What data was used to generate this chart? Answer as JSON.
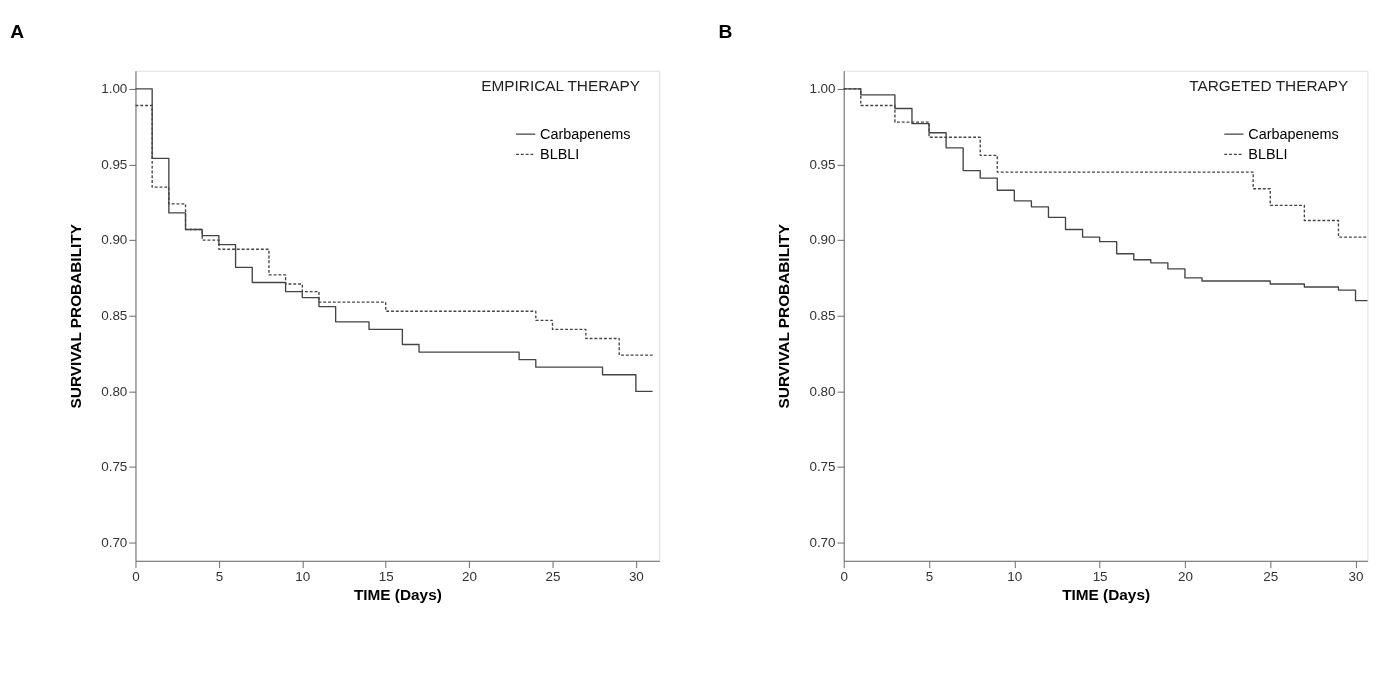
{
  "chart_data": [
    {
      "type": "step",
      "title": "A",
      "subtitle": "EMPIRICAL THERAPY",
      "xlabel": "TIME (Days)",
      "ylabel": "SURVIVAL PROBABILITY",
      "xlim": [
        0,
        31.4
      ],
      "ylim": [
        0.688,
        1.012
      ],
      "xticks": [
        0,
        5,
        10,
        15,
        20,
        25,
        30
      ],
      "yticks": [
        {
          "value": 0.7,
          "label": "0.70"
        },
        0.75,
        {
          "value": 0.8,
          "label": "0.80"
        },
        0.85,
        {
          "value": 0.9,
          "label": "0.90"
        },
        0.95,
        {
          "value": 1,
          "label": "1.00"
        }
      ],
      "legend": "top right",
      "grid": false,
      "marker": "none",
      "series": [
        {
          "name": "Carbapenems",
          "color": "#444444",
          "line_style": "solid",
          "x": [
            0,
            1,
            2,
            3,
            4,
            5,
            6,
            7,
            9,
            10,
            11,
            12,
            14,
            16,
            17,
            23,
            24,
            28,
            30,
            31
          ],
          "values": [
            1.0,
            0.954,
            0.918,
            0.907,
            0.903,
            0.897,
            0.882,
            0.872,
            0.866,
            0.862,
            0.856,
            0.846,
            0.841,
            0.831,
            0.826,
            0.821,
            0.816,
            0.811,
            0.8,
            0.8
          ]
        },
        {
          "name": "BLBLI",
          "color": "#444444",
          "line_style": "dashed",
          "x": [
            0,
            1,
            2,
            3,
            4,
            5,
            8,
            9,
            10,
            11,
            15,
            24,
            25,
            27,
            29,
            31
          ],
          "values": [
            0.989,
            0.935,
            0.924,
            0.907,
            0.9,
            0.894,
            0.877,
            0.871,
            0.866,
            0.859,
            0.853,
            0.847,
            0.841,
            0.835,
            0.824,
            0.824
          ]
        }
      ]
    },
    {
      "type": "step",
      "title": "B",
      "subtitle": "TARGETED THERAPY",
      "xlabel": "TIME (Days)",
      "ylabel": "SURVIVAL PROBABILITY",
      "xlim": [
        0,
        30.7
      ],
      "ylim": [
        0.688,
        1.012
      ],
      "xticks": [
        0,
        5,
        10,
        15,
        20,
        25,
        30
      ],
      "yticks": [
        {
          "value": 0.7,
          "label": "0.70"
        },
        0.75,
        {
          "value": 0.8,
          "label": "0.80"
        },
        0.85,
        {
          "value": 0.9,
          "label": "0.90"
        },
        0.95,
        {
          "value": 1,
          "label": "1.00"
        }
      ],
      "legend": "top right",
      "grid": false,
      "marker": "none",
      "series": [
        {
          "name": "Carbapenems",
          "color": "#444444",
          "line_style": "solid",
          "x": [
            0,
            1,
            3,
            4,
            5,
            6,
            7,
            8,
            9,
            10,
            11,
            12,
            13,
            14,
            15,
            16,
            17,
            18,
            19,
            20,
            21,
            25,
            27,
            29,
            30,
            30.7
          ],
          "values": [
            1.0,
            0.996,
            0.987,
            0.977,
            0.971,
            0.961,
            0.946,
            0.941,
            0.933,
            0.926,
            0.922,
            0.915,
            0.907,
            0.902,
            0.899,
            0.891,
            0.887,
            0.885,
            0.881,
            0.875,
            0.873,
            0.871,
            0.869,
            0.867,
            0.86,
            0.86
          ]
        },
        {
          "name": "BLBLI",
          "color": "#444444",
          "line_style": "dashed",
          "x": [
            0,
            1,
            3,
            5,
            8,
            9,
            24,
            25,
            27,
            29,
            30.7
          ],
          "values": [
            1.0,
            0.989,
            0.978,
            0.968,
            0.956,
            0.945,
            0.934,
            0.923,
            0.913,
            0.902,
            0.902
          ]
        }
      ]
    }
  ]
}
